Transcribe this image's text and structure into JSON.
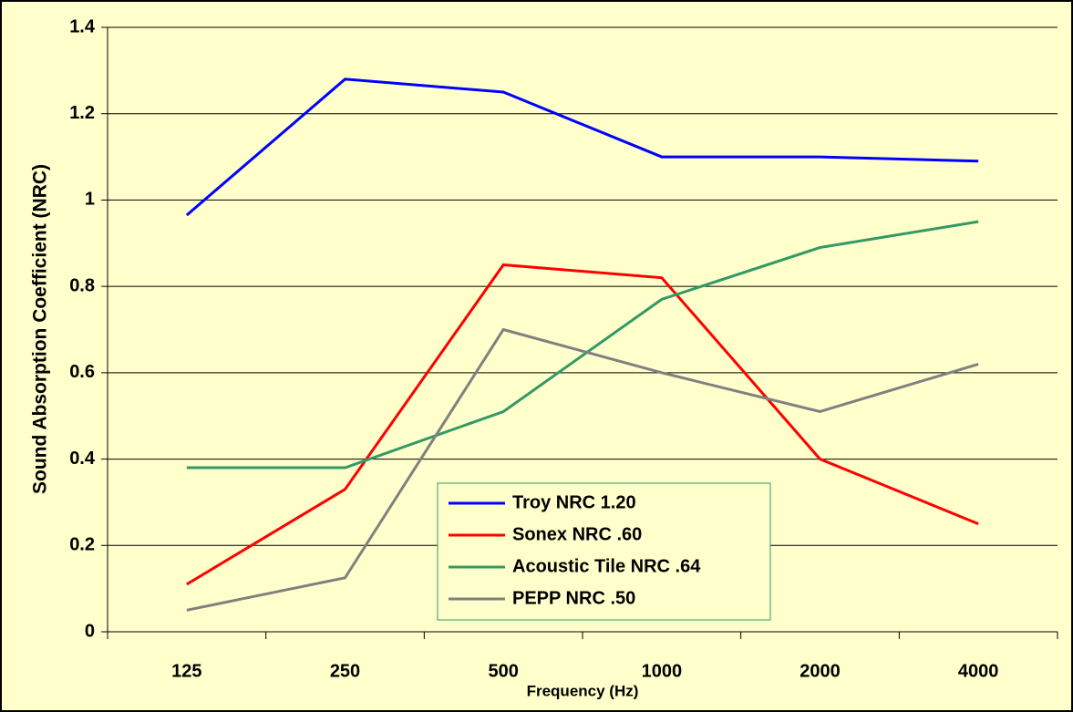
{
  "chart_data": {
    "type": "line",
    "xlabel": "Frequency (Hz)",
    "ylabel": "Sound Absorption Coefficient (NRC)",
    "categories": [
      "125",
      "250",
      "500",
      "1000",
      "2000",
      "4000"
    ],
    "series": [
      {
        "name": "Troy NRC 1.20",
        "color": "#0000ff",
        "values": [
          0.965,
          1.28,
          1.25,
          1.1,
          1.1,
          1.09
        ]
      },
      {
        "name": "Sonex NRC .60",
        "color": "#ff0000",
        "values": [
          0.11,
          0.33,
          0.85,
          0.82,
          0.4,
          0.25
        ]
      },
      {
        "name": "Acoustic Tile NRC .64",
        "color": "#339966",
        "values": [
          0.38,
          0.38,
          0.51,
          0.77,
          0.89,
          0.95
        ]
      },
      {
        "name": "PEPP NRC .50",
        "color": "#808080",
        "values": [
          0.05,
          0.125,
          0.7,
          0.6,
          0.51,
          0.62
        ]
      }
    ],
    "ylim": [
      0,
      1.4
    ],
    "yticks": [
      0,
      0.2,
      0.4,
      0.6,
      0.8,
      1,
      1.2,
      1.4
    ],
    "grid": true
  }
}
